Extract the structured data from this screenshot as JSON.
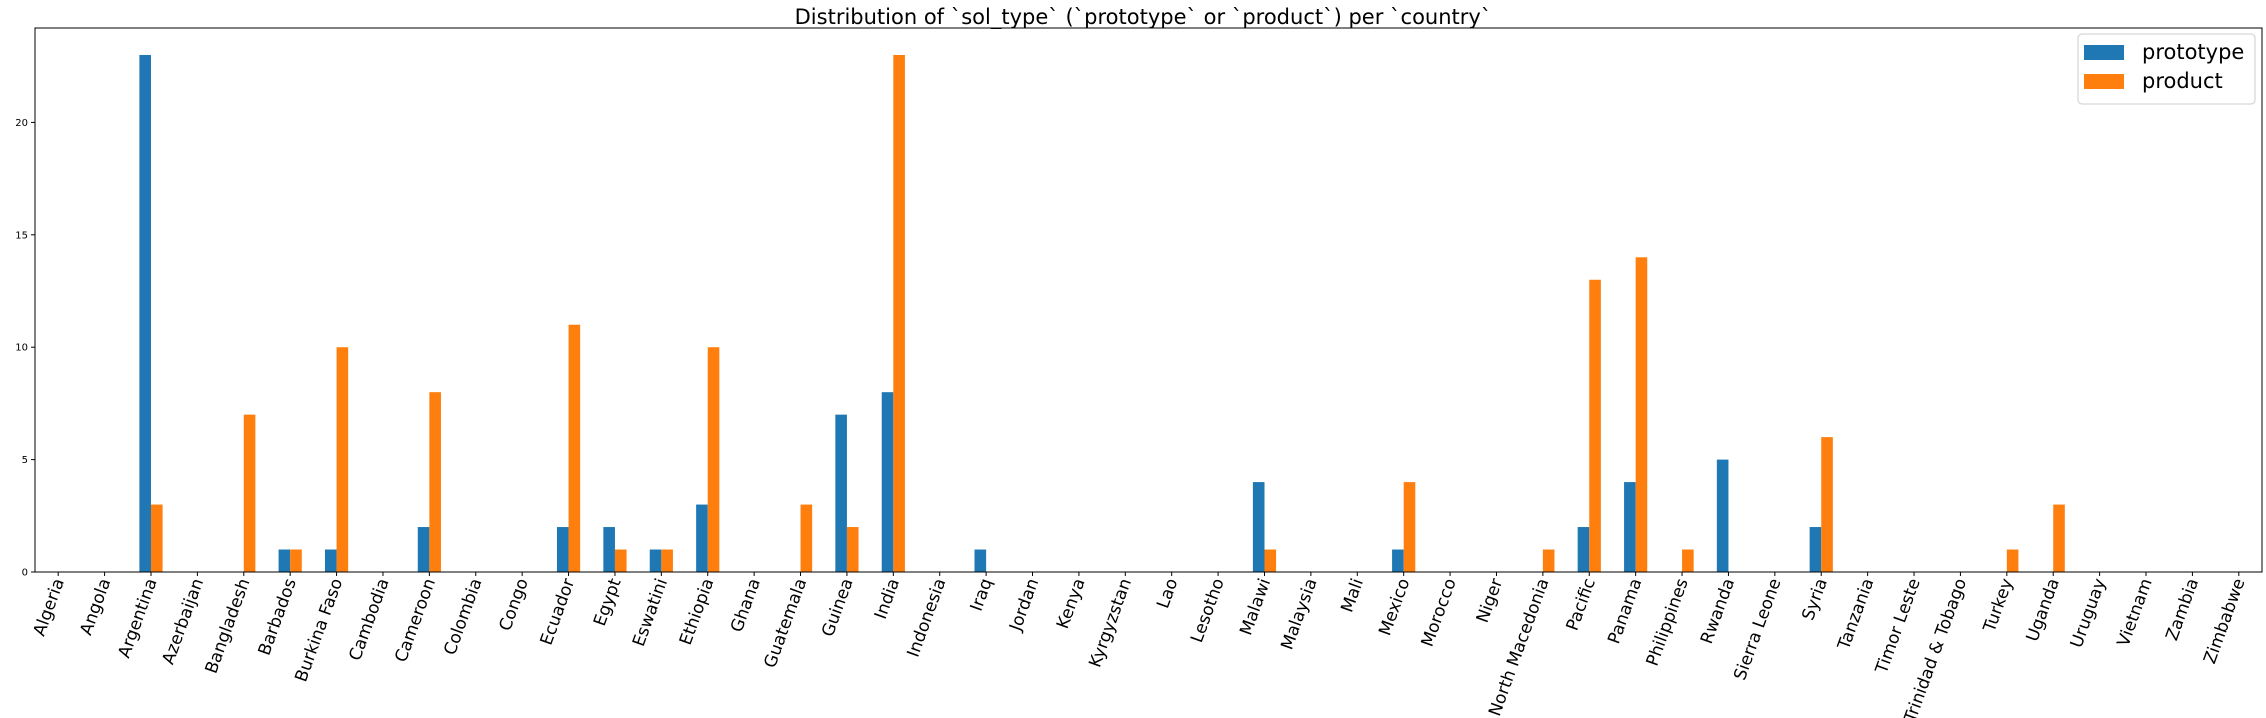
{
  "chart_data": {
    "type": "bar",
    "title": "Distribution of `sol_type` (`prototype` or `product`) per `country`",
    "xlabel": "",
    "ylabel": "",
    "ylim": [
      0,
      24.2
    ],
    "yticks": [
      0,
      5,
      10,
      15,
      20
    ],
    "grid": false,
    "legend_position": "top-right",
    "categories": [
      "Algeria",
      "Angola",
      "Argentina",
      "Azerbaijan",
      "Bangladesh",
      "Barbados",
      "Burkina Faso",
      "Cambodia",
      "Cameroon",
      "Colombia",
      "Congo",
      "Ecuador",
      "Egypt",
      "Eswatini",
      "Ethiopia",
      "Ghana",
      "Guatemala",
      "Guinea",
      "India",
      "Indonesia",
      "Iraq",
      "Jordan",
      "Kenya",
      "Kyrgyzstan",
      "Lao",
      "Lesotho",
      "Malawi",
      "Malaysia",
      "Mali",
      "Mexico",
      "Morocco",
      "Niger",
      "North Macedonia",
      "Pacific",
      "Panama",
      "Philippines",
      "Rwanda",
      "Sierra Leone",
      "Syria",
      "Tanzania",
      "Timor Leste",
      "Trinidad & Tobago",
      "Turkey",
      "Uganda",
      "Uruguay",
      "Vietnam",
      "Zambia",
      "Zimbabwe"
    ],
    "series": [
      {
        "name": "prototype",
        "color": "#1f77b4",
        "values": [
          0,
          0,
          23,
          0,
          0,
          1,
          1,
          0,
          2,
          0,
          0,
          2,
          2,
          1,
          3,
          0,
          0,
          7,
          8,
          0,
          1,
          0,
          0,
          0,
          0,
          0,
          4,
          0,
          0,
          1,
          0,
          0,
          0,
          2,
          4,
          0,
          5,
          0,
          2,
          0,
          0,
          0,
          0,
          0,
          0,
          0,
          0,
          0
        ]
      },
      {
        "name": "product",
        "color": "#ff7f0e",
        "values": [
          0,
          0,
          3,
          0,
          7,
          1,
          10,
          0,
          8,
          0,
          0,
          11,
          1,
          1,
          10,
          0,
          3,
          2,
          23,
          0,
          0,
          0,
          0,
          0,
          0,
          0,
          1,
          0,
          0,
          4,
          0,
          0,
          1,
          13,
          14,
          1,
          0,
          0,
          6,
          0,
          0,
          0,
          1,
          3,
          0,
          0,
          0,
          0
        ]
      }
    ]
  }
}
